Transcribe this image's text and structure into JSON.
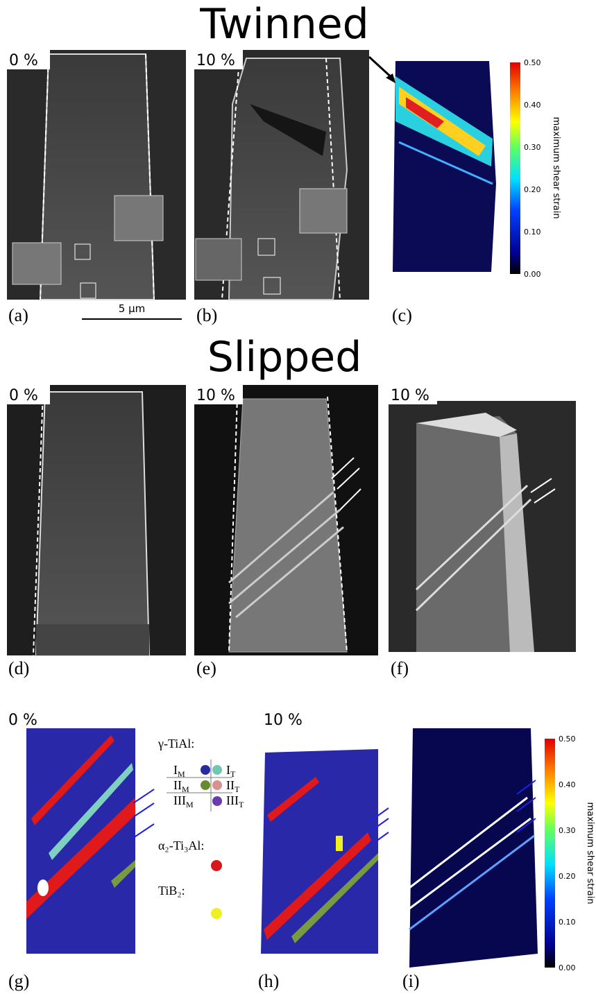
{
  "sections": [
    {
      "title": "Twinned"
    },
    {
      "title": "Slipped"
    }
  ],
  "panels": [
    {
      "label": "(a)",
      "strain": "0 %"
    },
    {
      "label": "(b)",
      "strain": "10 %"
    },
    {
      "label": "(c)"
    },
    {
      "label": "(d)",
      "strain": "0 %"
    },
    {
      "label": "(e)",
      "strain": "10 %"
    },
    {
      "label": "(f)",
      "strain": "10 %"
    },
    {
      "label": "(g)",
      "strain": "0 %"
    },
    {
      "label": "(h)",
      "strain": "10 %"
    },
    {
      "label": "(i)"
    }
  ],
  "scale_bar": "5 μm",
  "colorbars": [
    {
      "label": "maximum shear strain",
      "ticks": [
        "0.50",
        "0.40",
        "0.30",
        "0.20",
        "0.10",
        "0.00"
      ]
    },
    {
      "label": "maximum shear strain",
      "ticks": [
        "0.50",
        "0.40",
        "0.30",
        "0.20",
        "0.10",
        "0.00"
      ]
    }
  ],
  "legend": {
    "gamma": "γ-TiAl:",
    "variants": [
      {
        "m": "I",
        "m_sub": "M",
        "t": "I",
        "t_sub": "T"
      },
      {
        "m": "II",
        "m_sub": "M",
        "t": "II",
        "t_sub": "T"
      },
      {
        "m": "III",
        "m_sub": "M",
        "t": "III",
        "t_sub": "T"
      }
    ],
    "alpha2": "α₂-Ti₃Al:",
    "tib2": "TiB₂:"
  }
}
